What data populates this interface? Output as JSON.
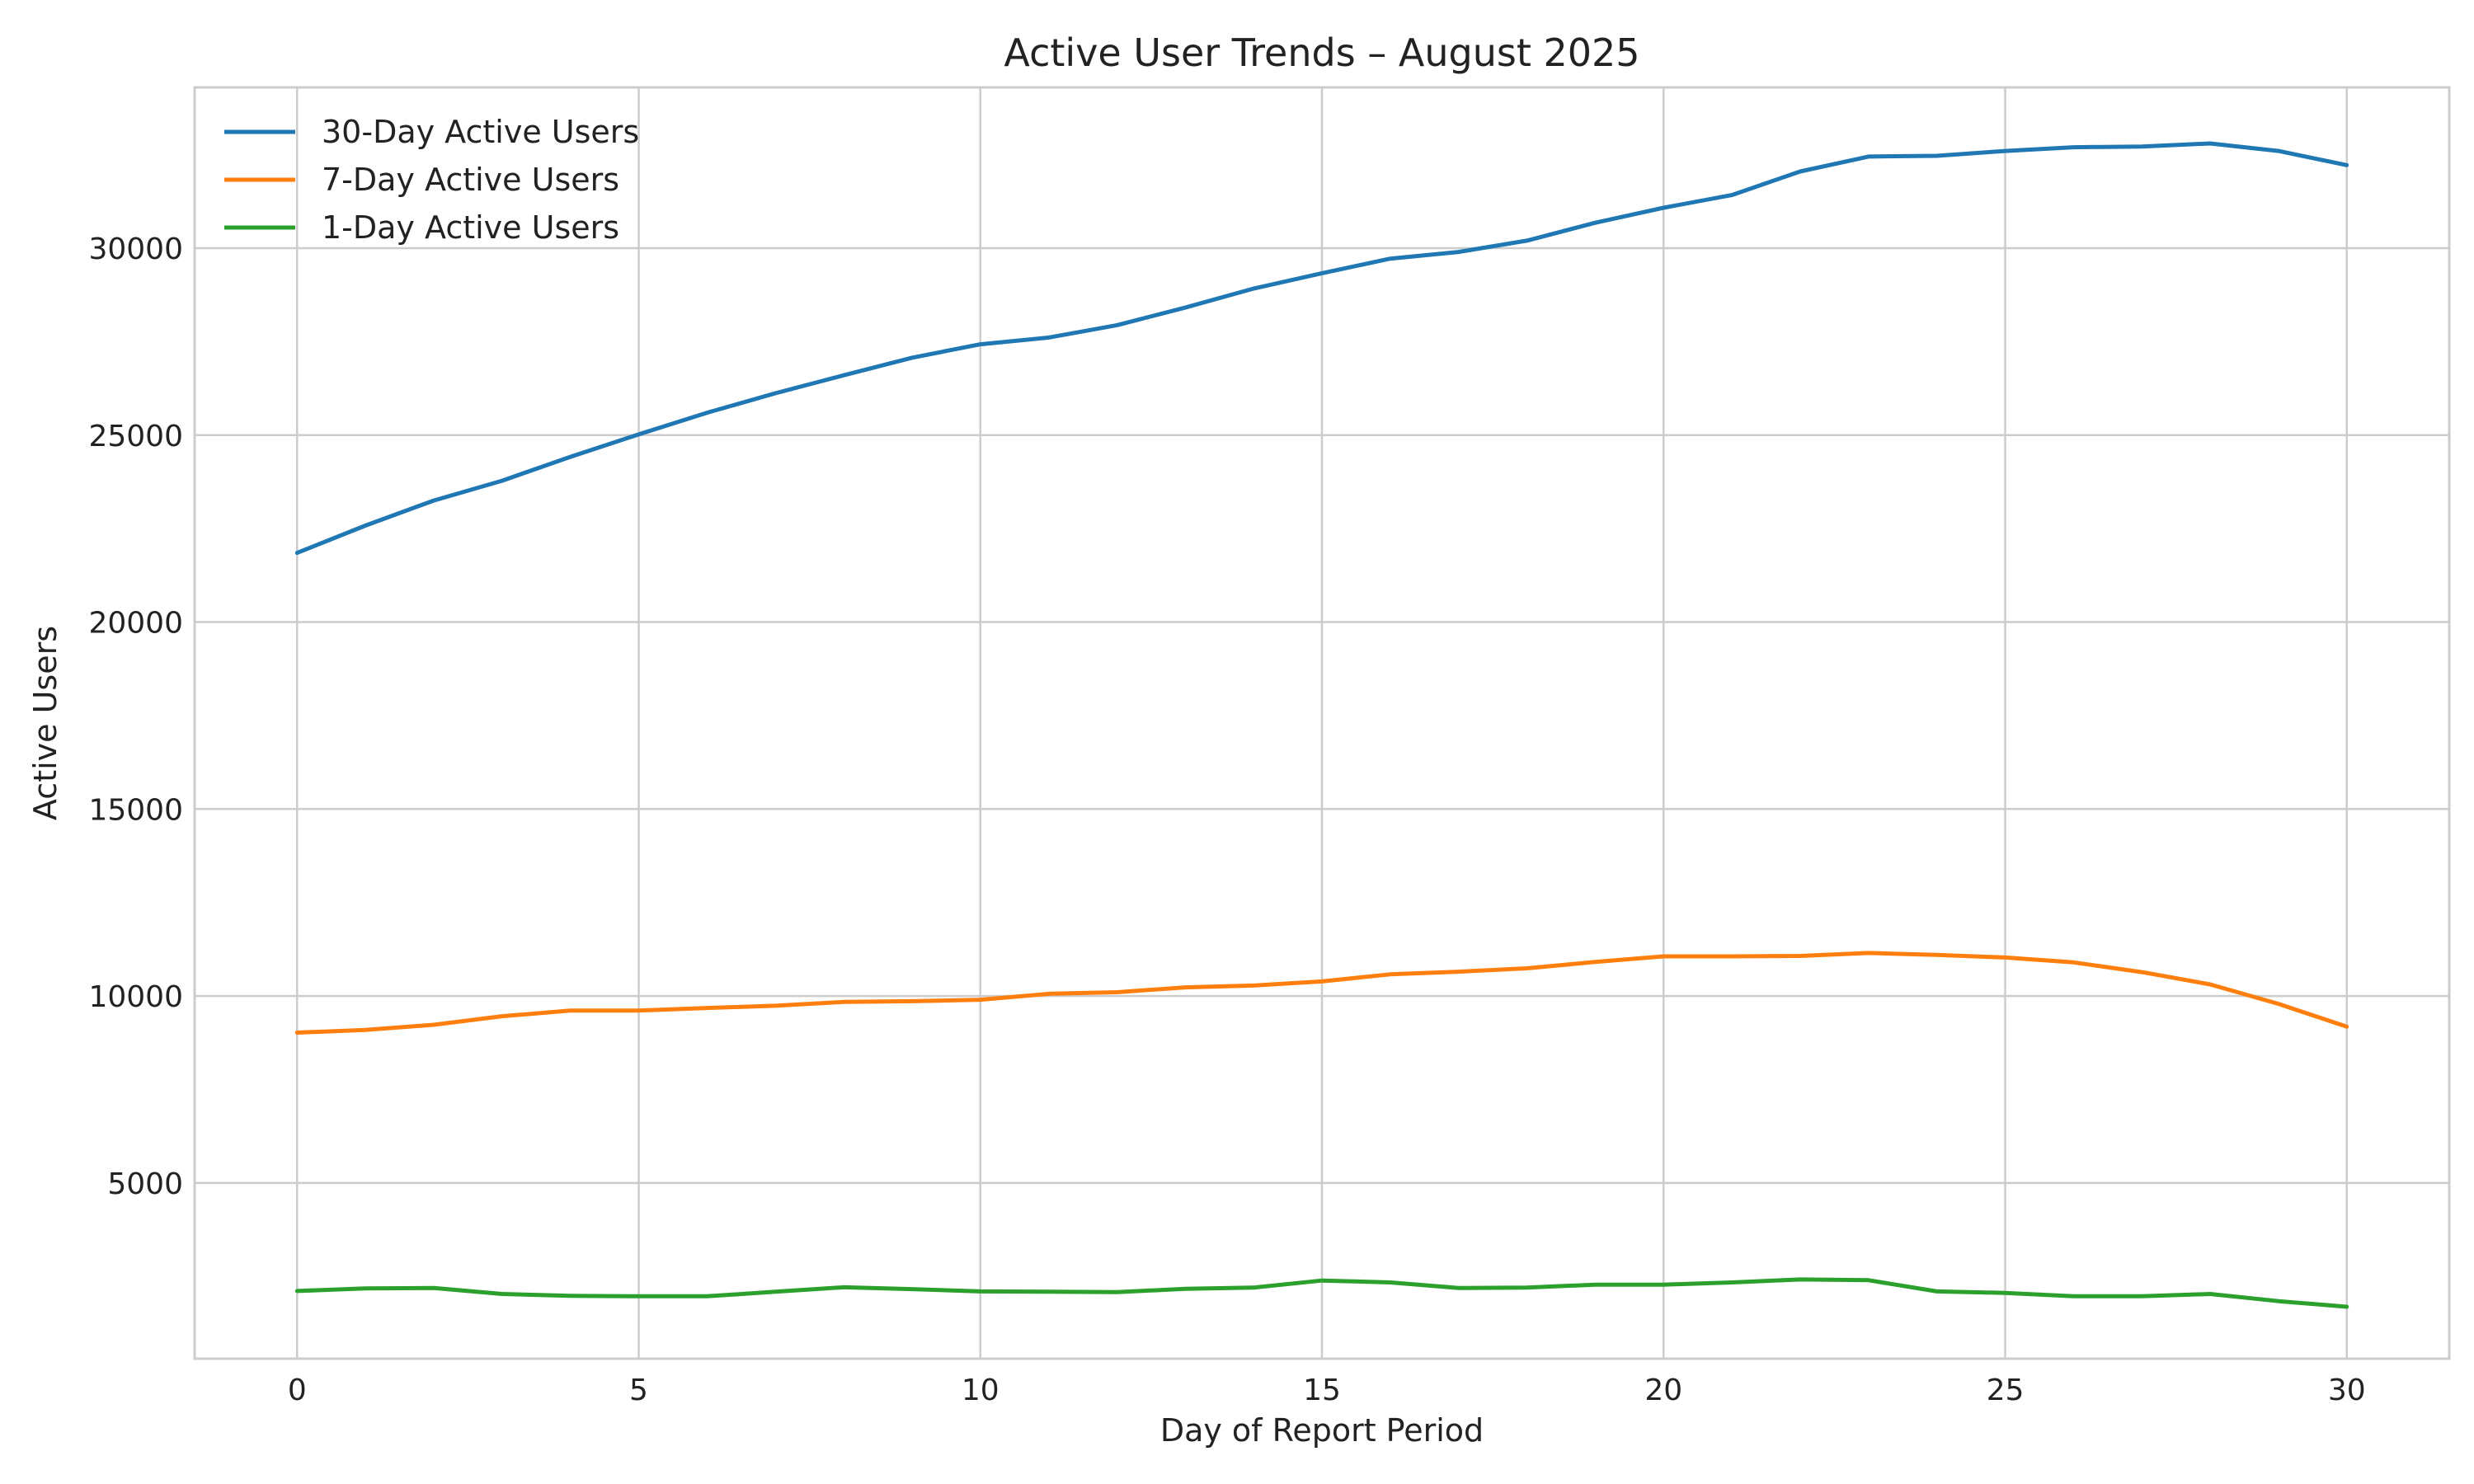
{
  "chart_data": {
    "type": "line",
    "title": "Active User Trends – August 2025",
    "xlabel": "Day of Report Period",
    "ylabel": "Active Users",
    "xlim": [
      -1.5,
      31.5
    ],
    "ylim": [
      300,
      34300
    ],
    "xticks": [
      0,
      5,
      10,
      15,
      20,
      25,
      30
    ],
    "yticks": [
      5000,
      10000,
      15000,
      20000,
      25000,
      30000
    ],
    "grid": true,
    "legend_position": "top-left",
    "x": [
      0,
      1,
      2,
      3,
      4,
      5,
      6,
      7,
      8,
      9,
      10,
      11,
      12,
      13,
      14,
      15,
      16,
      17,
      18,
      19,
      20,
      21,
      22,
      23,
      24,
      25,
      26,
      27,
      28,
      29,
      30
    ],
    "series": [
      {
        "name": "30-Day Active Users",
        "color": "#1f77b4",
        "values": [
          21850,
          22580,
          23250,
          23780,
          24420,
          25020,
          25600,
          26120,
          26600,
          27070,
          27430,
          27610,
          27940,
          28410,
          28920,
          29330,
          29720,
          29900,
          30200,
          30680,
          31080,
          31420,
          32050,
          32450,
          32470,
          32600,
          32700,
          32720,
          32800,
          32600,
          32220
        ]
      },
      {
        "name": "7-Day Active Users",
        "color": "#ff7f0e",
        "values": [
          9020,
          9090,
          9230,
          9460,
          9610,
          9610,
          9680,
          9740,
          9840,
          9860,
          9900,
          10060,
          10100,
          10230,
          10280,
          10390,
          10580,
          10650,
          10740,
          10910,
          11060,
          11060,
          11070,
          11150,
          11100,
          11030,
          10900,
          10640,
          10310,
          9790,
          9180
        ]
      },
      {
        "name": "1-Day Active Users",
        "color": "#2ca02c",
        "values": [
          2110,
          2180,
          2190,
          2030,
          1980,
          1970,
          1970,
          2090,
          2210,
          2160,
          2100,
          2090,
          2080,
          2170,
          2200,
          2390,
          2340,
          2190,
          2200,
          2280,
          2280,
          2340,
          2420,
          2400,
          2100,
          2060,
          1970,
          1970,
          2030,
          1840,
          1690
        ]
      }
    ]
  }
}
